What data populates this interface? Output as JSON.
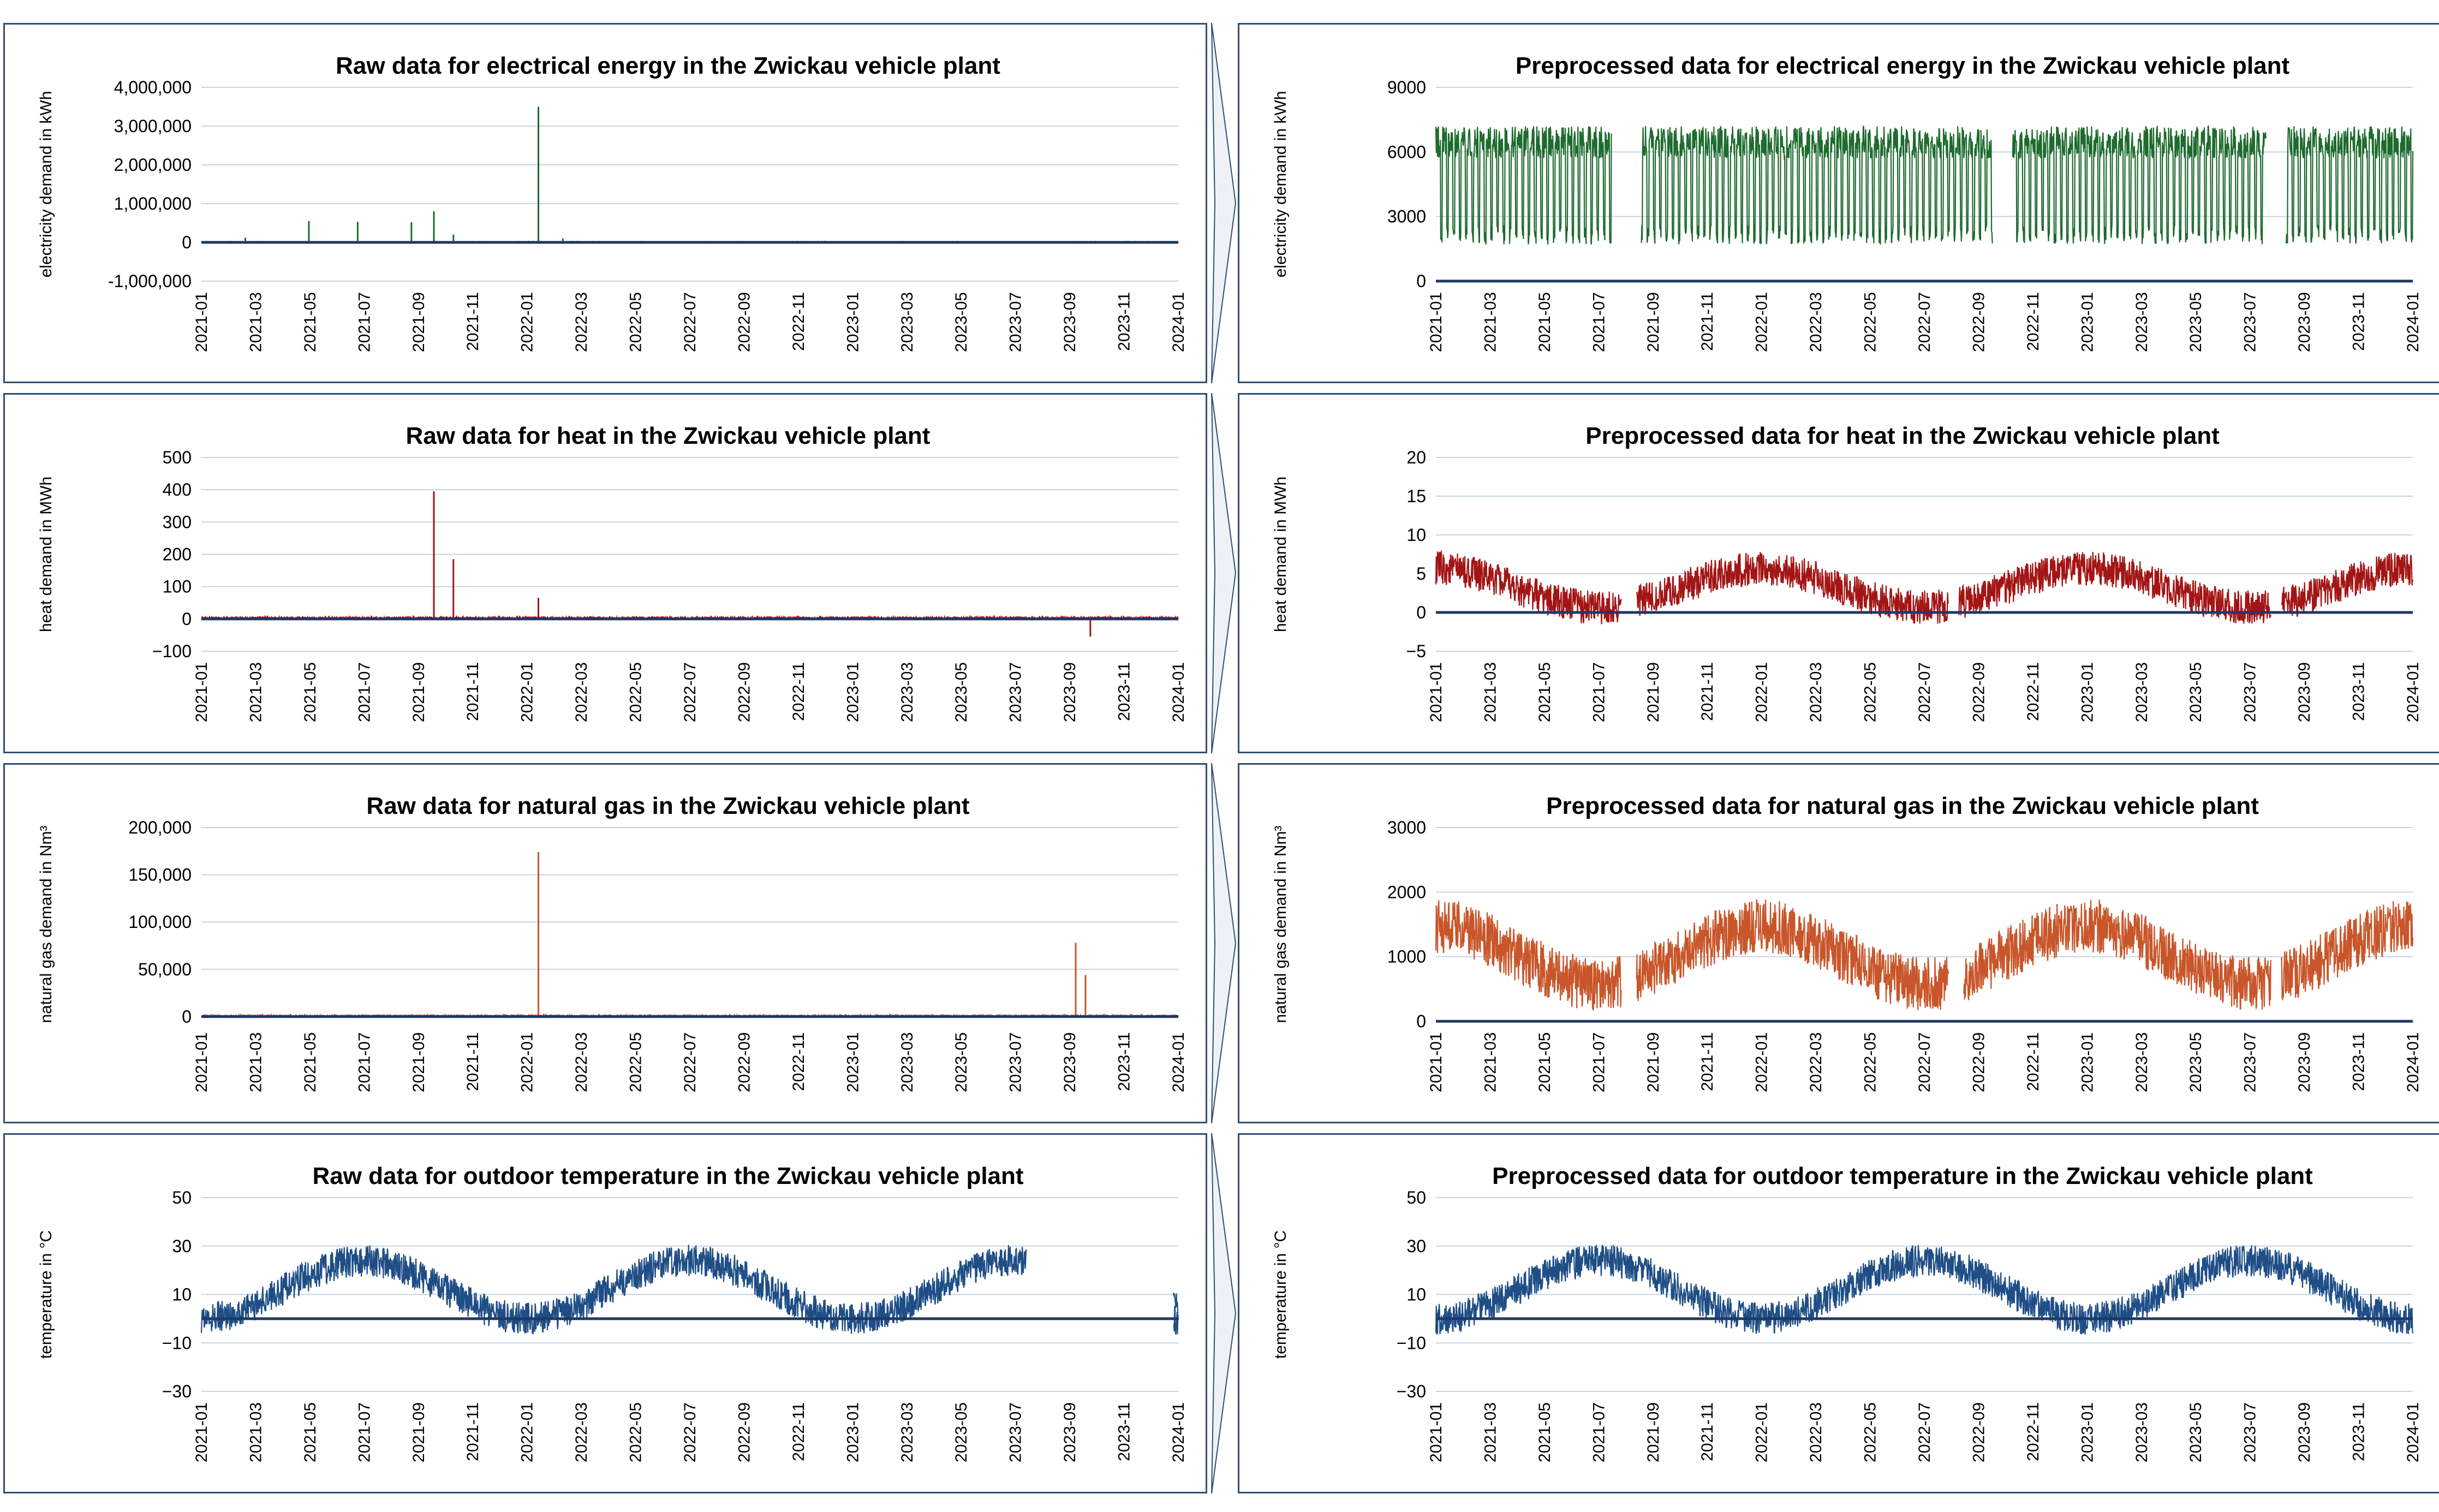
{
  "tick_labels": [
    "2021-01",
    "2021-03",
    "2021-05",
    "2021-07",
    "2021-09",
    "2021-11",
    "2022-01",
    "2022-03",
    "2022-05",
    "2022-07",
    "2022-09",
    "2022-11",
    "2023-01",
    "2023-03",
    "2023-05",
    "2023-07",
    "2023-09",
    "2023-11",
    "2024-01"
  ],
  "colors": {
    "border": "#2f4f74",
    "grid": "#c5d5e6",
    "zero": "#1f3864",
    "text": "#000000"
  },
  "chart_data": [
    {
      "id": "raw-electricity",
      "type": "line",
      "column": "left",
      "row": 0,
      "title": "Raw data for electrical energy in the Zwickau vehicle plant",
      "ylabel": "electricity demand in kWh",
      "y_ticks": [
        -1000000,
        0,
        1000000,
        2000000,
        3000000,
        4000000
      ],
      "y_tick_labels": [
        "-1,000,000",
        "0",
        "1,000,000",
        "2,000,000",
        "3,000,000",
        "4,000,000"
      ],
      "ylim": [
        -1000000,
        4000000
      ],
      "color": "#1e6b2e",
      "profile": "raw",
      "baseline": 10000,
      "spikes": [
        [
          0.045,
          120000
        ],
        [
          0.11,
          550000
        ],
        [
          0.16,
          530000
        ],
        [
          0.215,
          520000
        ],
        [
          0.238,
          800000
        ],
        [
          0.258,
          200000
        ],
        [
          0.345,
          3500000
        ],
        [
          0.37,
          100000
        ]
      ]
    },
    {
      "id": "pre-electricity",
      "type": "line",
      "column": "right",
      "row": 0,
      "title": "Preprocessed data for electrical energy in the Zwickau vehicle plant",
      "ylabel": "electricity demand in kWh",
      "y_ticks": [
        0,
        3000,
        6000,
        9000
      ],
      "y_tick_labels": [
        "0",
        "3000",
        "6000",
        "9000"
      ],
      "ylim": [
        0,
        9000
      ],
      "color": "#1e6b2e",
      "profile": "weekly",
      "low": 1700,
      "high": 7200,
      "gaps": [
        [
          0.18,
          0.21
        ],
        [
          0.57,
          0.59
        ],
        [
          0.85,
          0.87
        ]
      ]
    },
    {
      "id": "raw-heat",
      "type": "line",
      "column": "left",
      "row": 1,
      "title": "Raw data for heat in the Zwickau vehicle plant",
      "ylabel": "heat demand in MWh",
      "y_ticks": [
        -100,
        0,
        100,
        200,
        300,
        400,
        500
      ],
      "y_tick_labels": [
        "−100",
        "0",
        "100",
        "200",
        "300",
        "400",
        "500"
      ],
      "ylim": [
        -100,
        500
      ],
      "color": "#a31515",
      "profile": "raw",
      "baseline": 3,
      "spikes": [
        [
          0.238,
          395
        ],
        [
          0.258,
          185
        ],
        [
          0.345,
          65
        ],
        [
          0.91,
          -55
        ]
      ]
    },
    {
      "id": "pre-heat",
      "type": "line",
      "column": "right",
      "row": 1,
      "title": "Preprocessed data for heat in the Zwickau vehicle plant",
      "ylabel": "heat demand in MWh",
      "y_ticks": [
        -5,
        0,
        5,
        10,
        15,
        20
      ],
      "y_tick_labels": [
        "−5",
        "0",
        "5",
        "10",
        "15",
        "20"
      ],
      "ylim": [
        -5,
        20
      ],
      "color": "#a31515",
      "profile": "seasonal",
      "mean": 2.5,
      "amp": 2.5,
      "noise": 2.2,
      "gaps": [
        [
          0.19,
          0.205
        ],
        [
          0.525,
          0.535
        ],
        [
          0.855,
          0.865
        ]
      ]
    },
    {
      "id": "raw-gas",
      "type": "line",
      "column": "left",
      "row": 2,
      "title": "Raw data for natural gas in the Zwickau vehicle plant",
      "ylabel": "natural gas demand in Nm³",
      "y_ticks": [
        0,
        50000,
        100000,
        150000,
        200000
      ],
      "y_tick_labels": [
        "0",
        "50,000",
        "100,000",
        "150,000",
        "200,000"
      ],
      "ylim": [
        -5000,
        200000
      ],
      "color": "#c8562a",
      "profile": "raw",
      "baseline": 800,
      "spikes": [
        [
          0.345,
          174000
        ],
        [
          0.895,
          78000
        ],
        [
          0.905,
          44000
        ]
      ]
    },
    {
      "id": "pre-gas",
      "type": "line",
      "column": "right",
      "row": 2,
      "title": "Preprocessed data for natural gas in the Zwickau vehicle plant",
      "ylabel": "natural gas demand in Nm³",
      "y_ticks": [
        0,
        1000,
        2000,
        3000
      ],
      "y_tick_labels": [
        "0",
        "1000",
        "2000",
        "3000"
      ],
      "ylim": [
        0,
        3000
      ],
      "color": "#c8562a",
      "profile": "seasonal",
      "mean": 900,
      "amp": 450,
      "noise": 420,
      "gaps": [
        [
          0.19,
          0.205
        ],
        [
          0.525,
          0.54
        ],
        [
          0.855,
          0.865
        ]
      ]
    },
    {
      "id": "raw-temp",
      "type": "line",
      "column": "left",
      "row": 3,
      "title": "Raw data for outdoor temperature in the Zwickau vehicle plant",
      "ylabel": "temperature in °C",
      "y_ticks": [
        -30,
        -10,
        10,
        30,
        50
      ],
      "y_tick_labels": [
        "−30",
        "−10",
        "10",
        "30",
        "50"
      ],
      "ylim": [
        -30,
        50
      ],
      "color": "#1f4e86",
      "profile": "temperature",
      "mean": 12,
      "amp": -12,
      "noise": 6,
      "gaps": [
        [
          0.845,
          0.995
        ]
      ]
    },
    {
      "id": "pre-temp",
      "type": "line",
      "column": "right",
      "row": 3,
      "title": "Preprocessed data for outdoor temperature in the Zwickau vehicle plant",
      "ylabel": "temperature in °C",
      "y_ticks": [
        -30,
        -10,
        10,
        30,
        50
      ],
      "y_tick_labels": [
        "−30",
        "−10",
        "10",
        "30",
        "50"
      ],
      "ylim": [
        -30,
        50
      ],
      "color": "#1f4e86",
      "profile": "temperature",
      "mean": 12,
      "amp": -12,
      "noise": 6,
      "gaps": []
    }
  ]
}
